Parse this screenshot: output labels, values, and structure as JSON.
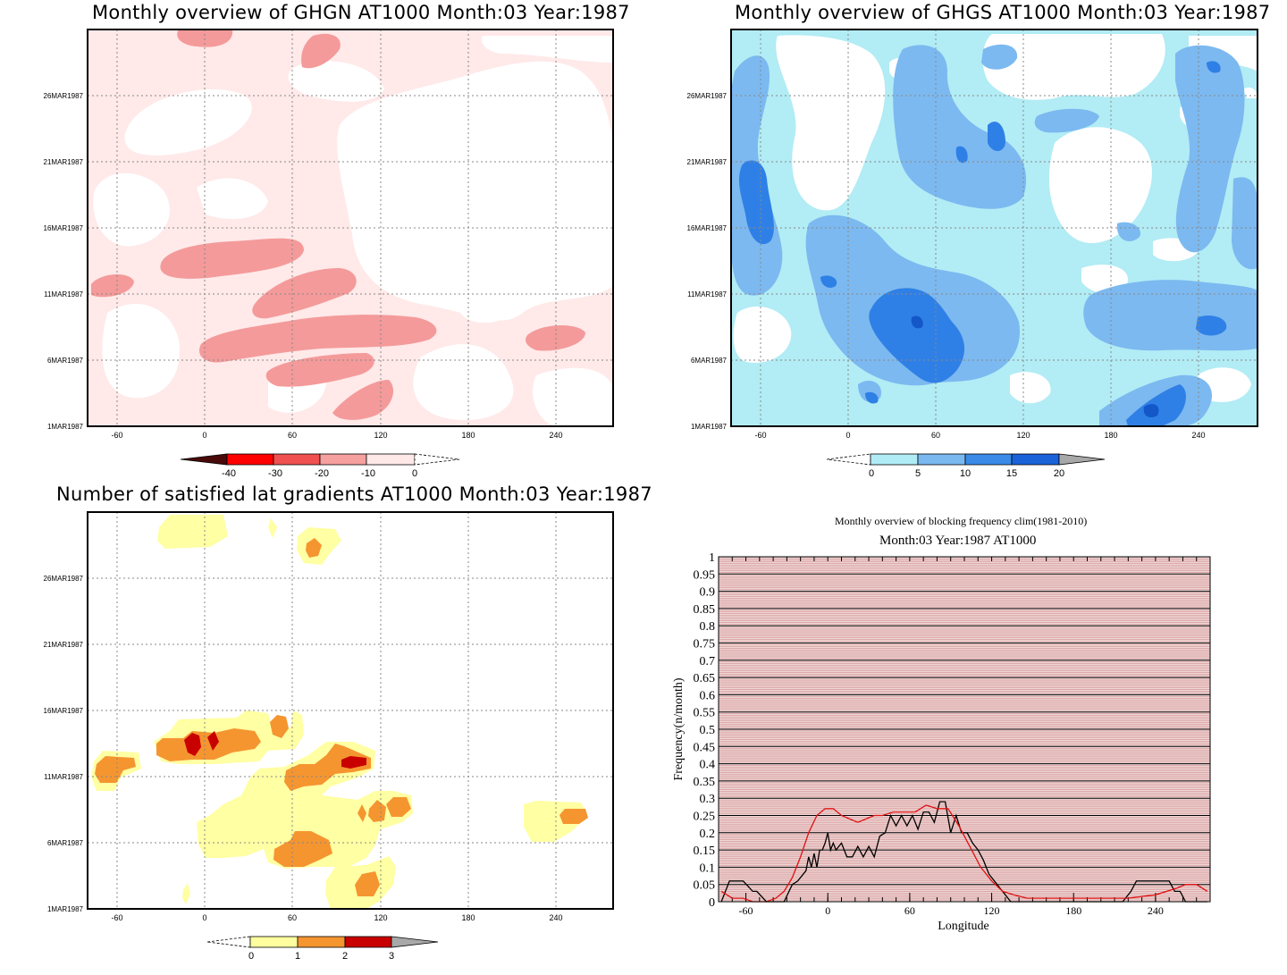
{
  "panels": {
    "ghgn": {
      "title": "Monthly overview of GHGN AT1000 Month:03 Year:1987"
    },
    "ghgs": {
      "title": "Monthly overview of GHGS AT1000 Month:03 Year:1987"
    },
    "grad": {
      "title": "Number of satisfied lat gradients AT1000 Month:03 Year:1987"
    },
    "freq": {
      "title": "Monthly overview of blocking frequency clim(1981-2010)",
      "subtitle": "Month:03 Year:1987  AT1000"
    }
  },
  "chart_data": [
    {
      "type": "heatmap",
      "title": "Monthly overview of GHGN AT1000 Month:03 Year:1987",
      "x_ticks": [
        "-60",
        "0",
        "60",
        "120",
        "180",
        "240"
      ],
      "xlim": [
        -80,
        280
      ],
      "y_ticks": [
        "1MAR1987",
        "6MAR1987",
        "11MAR1987",
        "16MAR1987",
        "21MAR1987",
        "26MAR1987"
      ],
      "colorbar": {
        "labels": [
          "-40",
          "-30",
          "-20",
          "-10",
          "0"
        ],
        "colors": [
          "#4a0a0a",
          "#ff0000",
          "#f05050",
          "#f6a0a0",
          "#ffe8e8"
        ]
      }
    },
    {
      "type": "heatmap",
      "title": "Monthly overview of GHGS AT1000 Month:03 Year:1987",
      "x_ticks": [
        "-60",
        "0",
        "60",
        "120",
        "180",
        "240"
      ],
      "xlim": [
        -80,
        280
      ],
      "y_ticks": [
        "1MAR1987",
        "6MAR1987",
        "11MAR1987",
        "16MAR1987",
        "21MAR1987",
        "26MAR1987"
      ],
      "colorbar": {
        "labels": [
          "0",
          "5",
          "10",
          "15",
          "20"
        ],
        "colors": [
          "#b0ecf5",
          "#7ab8f0",
          "#3a8ae8",
          "#1a62d8",
          "#a8a8a8"
        ]
      }
    },
    {
      "type": "heatmap",
      "title": "Number of satisfied lat gradients AT1000 Month:03 Year:1987",
      "x_ticks": [
        "-60",
        "0",
        "60",
        "120",
        "180",
        "240"
      ],
      "xlim": [
        -80,
        280
      ],
      "y_ticks": [
        "1MAR1987",
        "6MAR1987",
        "11MAR1987",
        "16MAR1987",
        "21MAR1987",
        "26MAR1987"
      ],
      "colorbar": {
        "labels": [
          "0",
          "1",
          "2",
          "3"
        ],
        "colors": [
          "#ffffa0",
          "#f59530",
          "#c80000",
          "#a8a8a8"
        ]
      }
    },
    {
      "type": "line",
      "title": "Monthly overview of blocking frequency clim(1981-2010)",
      "subtitle": "Month:03 Year:1987  AT1000",
      "xlabel": "Longitude",
      "ylabel": "Frequency(n/month)",
      "xlim": [
        -80,
        280
      ],
      "ylim": [
        0,
        1
      ],
      "x_ticks": [
        "-60",
        "0",
        "60",
        "120",
        "180",
        "240"
      ],
      "y_ticks": [
        "0",
        "0.05",
        "0.1",
        "0.15",
        "0.2",
        "0.25",
        "0.3",
        "0.35",
        "0.4",
        "0.45",
        "0.5",
        "0.55",
        "0.6",
        "0.65",
        "0.7",
        "0.75",
        "0.8",
        "0.85",
        "0.9",
        "0.95",
        "1"
      ],
      "series": [
        {
          "color": "#000000",
          "x": [
            -78,
            -72,
            -62,
            -55,
            -52,
            -45,
            -40,
            -36,
            -32,
            -26,
            -22,
            -16,
            -14,
            -12,
            -10,
            -8,
            -6,
            -4,
            -2,
            0,
            2,
            4,
            6,
            10,
            14,
            18,
            22,
            26,
            30,
            34,
            38,
            42,
            46,
            50,
            54,
            58,
            62,
            66,
            70,
            74,
            78,
            82,
            86,
            90,
            94,
            98,
            102,
            106,
            110,
            114,
            118,
            122,
            126,
            130,
            134,
            140,
            150,
            170,
            200,
            216,
            222,
            226,
            232,
            250,
            254,
            258,
            262,
            266,
            270,
            274,
            278
          ],
          "y": [
            0,
            0.06,
            0.06,
            0.03,
            0.03,
            0,
            0,
            0,
            0,
            0.05,
            0.06,
            0.09,
            0.13,
            0.1,
            0.14,
            0.1,
            0.15,
            0.15,
            0.17,
            0.2,
            0.15,
            0.17,
            0.15,
            0.17,
            0.13,
            0.13,
            0.16,
            0.13,
            0.16,
            0.13,
            0.19,
            0.2,
            0.25,
            0.22,
            0.25,
            0.22,
            0.25,
            0.21,
            0.26,
            0.26,
            0.23,
            0.29,
            0.29,
            0.2,
            0.25,
            0.2,
            0.2,
            0.17,
            0.15,
            0.12,
            0.08,
            0.06,
            0.04,
            0.02,
            0,
            0,
            0,
            0,
            0,
            0,
            0.03,
            0.06,
            0.06,
            0.06,
            0.03,
            0.03,
            0,
            0,
            0,
            0,
            0
          ]
        },
        {
          "color": "#e01010",
          "x": [
            -78,
            -70,
            -62,
            -55,
            -45,
            -38,
            -32,
            -26,
            -20,
            -14,
            -8,
            -2,
            4,
            10,
            16,
            22,
            28,
            34,
            40,
            48,
            56,
            64,
            72,
            80,
            88,
            96,
            104,
            112,
            120,
            128,
            136,
            146,
            160,
            180,
            200,
            220,
            240,
            256,
            262,
            270,
            278
          ],
          "y": [
            0.03,
            0.01,
            0.01,
            0,
            0,
            0.01,
            0.03,
            0.07,
            0.13,
            0.2,
            0.25,
            0.27,
            0.27,
            0.25,
            0.24,
            0.23,
            0.24,
            0.25,
            0.25,
            0.26,
            0.26,
            0.26,
            0.28,
            0.27,
            0.27,
            0.22,
            0.16,
            0.1,
            0.06,
            0.03,
            0.02,
            0.01,
            0.01,
            0.01,
            0.01,
            0.01,
            0.02,
            0.04,
            0.05,
            0.05,
            0.03
          ]
        }
      ]
    }
  ]
}
